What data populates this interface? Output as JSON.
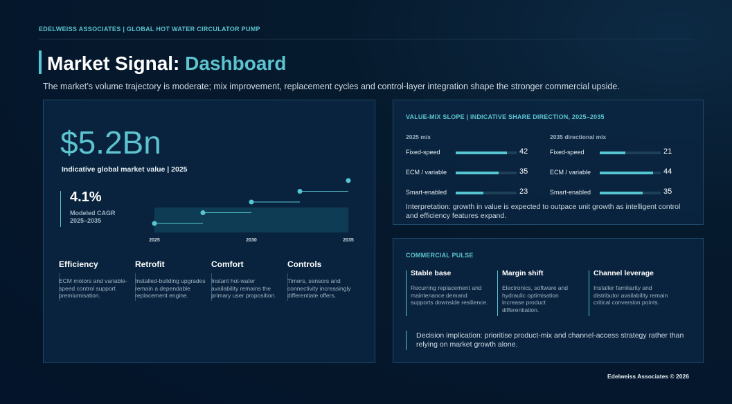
{
  "header": {
    "label": "EDELWEISS ASSOCIATES | GLOBAL HOT WATER CIRCULATOR PUMP"
  },
  "title": {
    "main": "Market Signal: ",
    "accent": "Dashboard"
  },
  "subtitle": "The market’s volume trajectory is moderate; mix improvement, replacement cycles and control-layer integration shape the stronger commercial upside.",
  "market": {
    "value": "$5.2Bn",
    "caption": "Indicative global market value | 2025",
    "cagr": "4.1%",
    "cagr_label": "Modeled CAGR 2025–2035"
  },
  "chart_data": {
    "type": "line",
    "x": [
      2025,
      2027.5,
      2030,
      2032.5,
      2035
    ],
    "x_ticks": [
      "2025",
      "2030",
      "2035"
    ],
    "y": [
      1,
      2,
      3,
      4,
      5
    ],
    "legend": "none",
    "grid": false
  },
  "pillars": [
    {
      "title": "Efficiency",
      "text": "ECM motors and variable-speed control support premiumisation."
    },
    {
      "title": "Retrofit",
      "text": "Installed-building upgrades remain a dependable replacement engine."
    },
    {
      "title": "Comfort",
      "text": "Instant hot-water availability remains the primary user proposition."
    },
    {
      "title": "Controls",
      "text": "Timers, sensors and connectivity increasingly differentiate offers."
    }
  ],
  "mix": {
    "heading": "VALUE-MIX SLOPE | INDICATIVE SHARE DIRECTION, 2025–2035",
    "col_2025_title": "2025 mix",
    "col_2035_title": "2035 directional mix",
    "rows_2025": [
      {
        "label": "Fixed-speed",
        "value": 42
      },
      {
        "label": "ECM / variable",
        "value": 35
      },
      {
        "label": "Smart-enabled",
        "value": 23
      }
    ],
    "rows_2035": [
      {
        "label": "Fixed-speed",
        "value": 21
      },
      {
        "label": "ECM / variable",
        "value": 44
      },
      {
        "label": "Smart-enabled",
        "value": 35
      }
    ],
    "note": "Interpretation: growth in value is expected to outpace unit growth as intelligent control and efficiency features expand."
  },
  "pulse": {
    "heading": "COMMERCIAL PULSE",
    "items": [
      {
        "title": "Stable base",
        "text": "Recurring replacement and maintenance demand supports downside resilience."
      },
      {
        "title": "Margin shift",
        "text": "Electronics, software and hydraulic optimisation increase product differentiation."
      },
      {
        "title": "Channel leverage",
        "text": "Installer familiarity and distributor availability remain critical conversion points."
      }
    ],
    "decision": "Decision implication: prioritise product-mix and channel-access strategy rather than relying on market growth alone."
  },
  "footer": "Edelweiss Associates © 2026",
  "colors": {
    "accent": "#5cc3cf",
    "background": "#061a2d",
    "panel": "#0a2642"
  }
}
